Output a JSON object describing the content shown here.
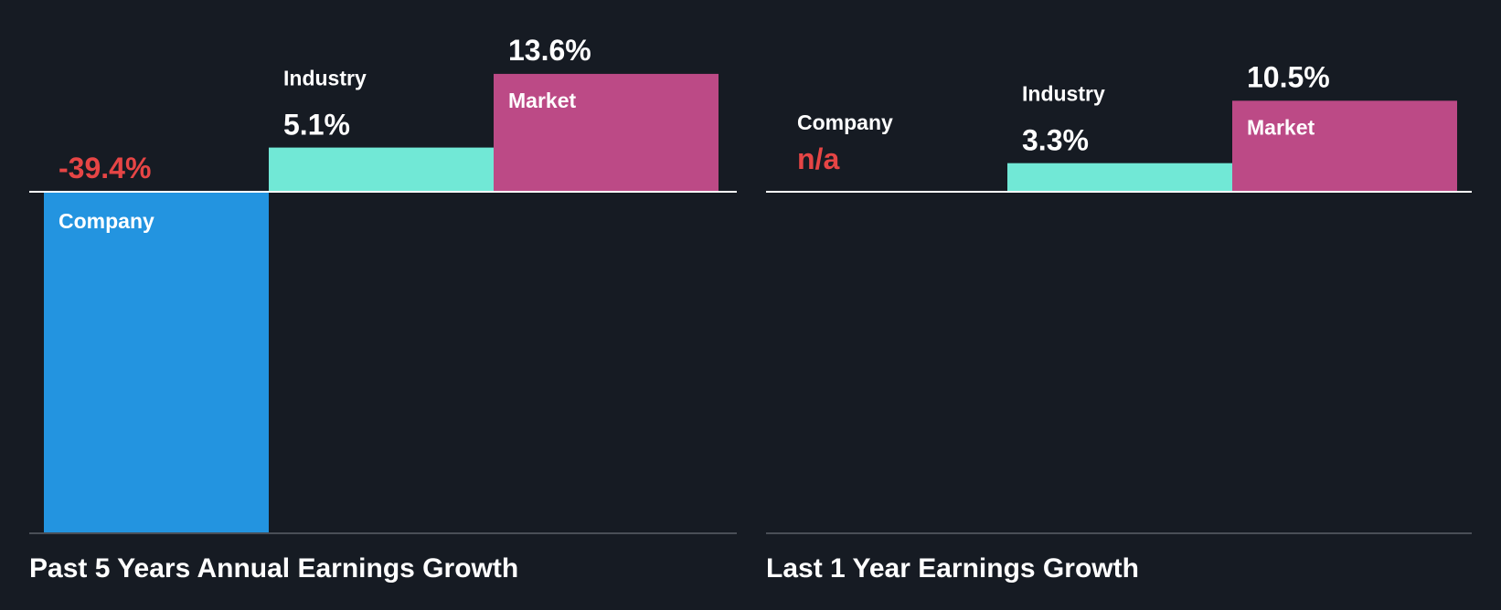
{
  "colors": {
    "background": "#161b23",
    "company": "#2394e0",
    "industry": "#71e8d6",
    "market": "#bc4a86",
    "negative_text": "#e64545",
    "text": "#ffffff",
    "baseline": "#ffffff",
    "bottom_axis": "#4a4f57"
  },
  "chart_data": [
    {
      "type": "bar",
      "title": "Past 5 Years Annual Earnings Growth",
      "categories": [
        "Company",
        "Industry",
        "Market"
      ],
      "values": [
        -39.4,
        5.1,
        13.6
      ],
      "value_labels": [
        "-39.4%",
        "5.1%",
        "13.6%"
      ],
      "unit": "%",
      "xlabel": "",
      "ylabel": "",
      "ylim": [
        -39.4,
        13.6
      ]
    },
    {
      "type": "bar",
      "title": "Last 1 Year Earnings Growth",
      "categories": [
        "Company",
        "Industry",
        "Market"
      ],
      "values": [
        null,
        3.3,
        10.5
      ],
      "value_labels": [
        "n/a",
        "3.3%",
        "10.5%"
      ],
      "unit": "%",
      "xlabel": "",
      "ylabel": "",
      "ylim": [
        -39.4,
        13.6
      ]
    }
  ]
}
